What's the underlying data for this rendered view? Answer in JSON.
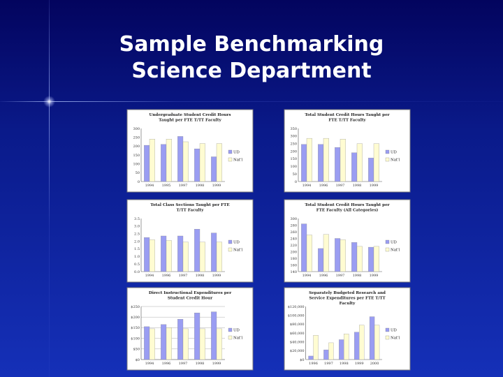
{
  "slide": {
    "title_line1": "Sample Benchmarking",
    "title_line2": "Science Department"
  },
  "colors": {
    "series_ud": "#9a9df2",
    "series_nat": "#fffcd2",
    "chart_bg": "#ffffff",
    "border": "#7a7a7a"
  },
  "chart_data": [
    {
      "type": "bar",
      "title": "Undergraduate Student Credit Hours Taught per FTE T/TT Faculty",
      "categories": [
        "1994",
        "1995",
        "1997",
        "1998",
        "1999"
      ],
      "ylim": [
        0,
        300
      ],
      "yticks": [
        "300",
        "250",
        "200",
        "150",
        "100",
        "50",
        "0"
      ],
      "series": [
        {
          "name": "UD",
          "values": [
            205,
            210,
            255,
            185,
            140
          ]
        },
        {
          "name": "Nat'l",
          "values": [
            240,
            240,
            225,
            215,
            215
          ]
        }
      ],
      "legend": "right",
      "grid": false
    },
    {
      "type": "bar",
      "title": "Total Student Credit Hours Taught per FTE T/TT Faculty",
      "categories": [
        "1994",
        "1996",
        "1997",
        "1998",
        "1999"
      ],
      "ylim": [
        0,
        350
      ],
      "yticks": [
        "350",
        "300",
        "250",
        "200",
        "150",
        "100",
        "50",
        "0"
      ],
      "series": [
        {
          "name": "UD",
          "values": [
            245,
            245,
            225,
            190,
            155
          ]
        },
        {
          "name": "Nat'l",
          "values": [
            285,
            285,
            280,
            250,
            250
          ]
        }
      ],
      "legend": "right",
      "grid": false
    },
    {
      "type": "bar",
      "title": "Total Class Sections Taught per FTE T/TT Faculty",
      "categories": [
        "1994",
        "1996",
        "1997",
        "1998",
        "1999"
      ],
      "ylim": [
        0,
        3.5
      ],
      "yticks": [
        "3.5",
        "3.0",
        "2.5",
        "2.0",
        "1.5",
        "1.0",
        "0.5",
        "0.0"
      ],
      "series": [
        {
          "name": "UD",
          "values": [
            2.25,
            2.35,
            2.35,
            2.8,
            2.55
          ]
        },
        {
          "name": "Nat'l",
          "values": [
            2.1,
            2.05,
            1.95,
            1.95,
            1.95
          ]
        }
      ],
      "legend": "right",
      "grid": false
    },
    {
      "type": "bar",
      "title": "Total Student Credit Hours Taught per FTE Faculty (All Categories)",
      "categories": [
        "1994",
        "1996",
        "1997",
        "1998",
        "1999"
      ],
      "ylim": [
        100,
        300
      ],
      "yticks": [
        "300",
        "280",
        "260",
        "240",
        "220",
        "200",
        "180",
        "160",
        "140"
      ],
      "series": [
        {
          "name": "UD",
          "values": [
            280,
            187,
            225,
            210,
            192
          ]
        },
        {
          "name": "Nat'l",
          "values": [
            238,
            240,
            220,
            195,
            195
          ]
        }
      ],
      "legend": "right",
      "grid": false
    },
    {
      "type": "bar",
      "title": "Direct Instructional Expenditures per Student Credit Hour",
      "categories": [
        "1994",
        "1996",
        "1997",
        "1998",
        "1999"
      ],
      "ylim": [
        0,
        250
      ],
      "yticks": [
        "$250",
        "$200",
        "$150",
        "$100",
        "$50",
        "$0"
      ],
      "series": [
        {
          "name": "UD",
          "values": [
            155,
            165,
            190,
            220,
            225
          ]
        },
        {
          "name": "Nat'l",
          "values": [
            145,
            150,
            145,
            145,
            145
          ]
        }
      ],
      "legend": "right",
      "grid": true
    },
    {
      "type": "bar",
      "title": "Separately Budgeted Research and Service Expenditures per FTE T/TT Faculty",
      "categories": [
        "1996",
        "1997",
        "1998",
        "1999",
        "2000"
      ],
      "ylim": [
        0,
        120000
      ],
      "yticks": [
        "$120,000",
        "$100,000",
        "$80,000",
        "$60,000",
        "$40,000",
        "$20,000",
        "$0"
      ],
      "series": [
        {
          "name": "UD",
          "values": [
            8000,
            22000,
            45000,
            62000,
            97000
          ]
        },
        {
          "name": "Nat'l",
          "values": [
            55000,
            38000,
            58000,
            78000,
            78000
          ]
        }
      ],
      "legend": "right",
      "grid": false
    }
  ]
}
